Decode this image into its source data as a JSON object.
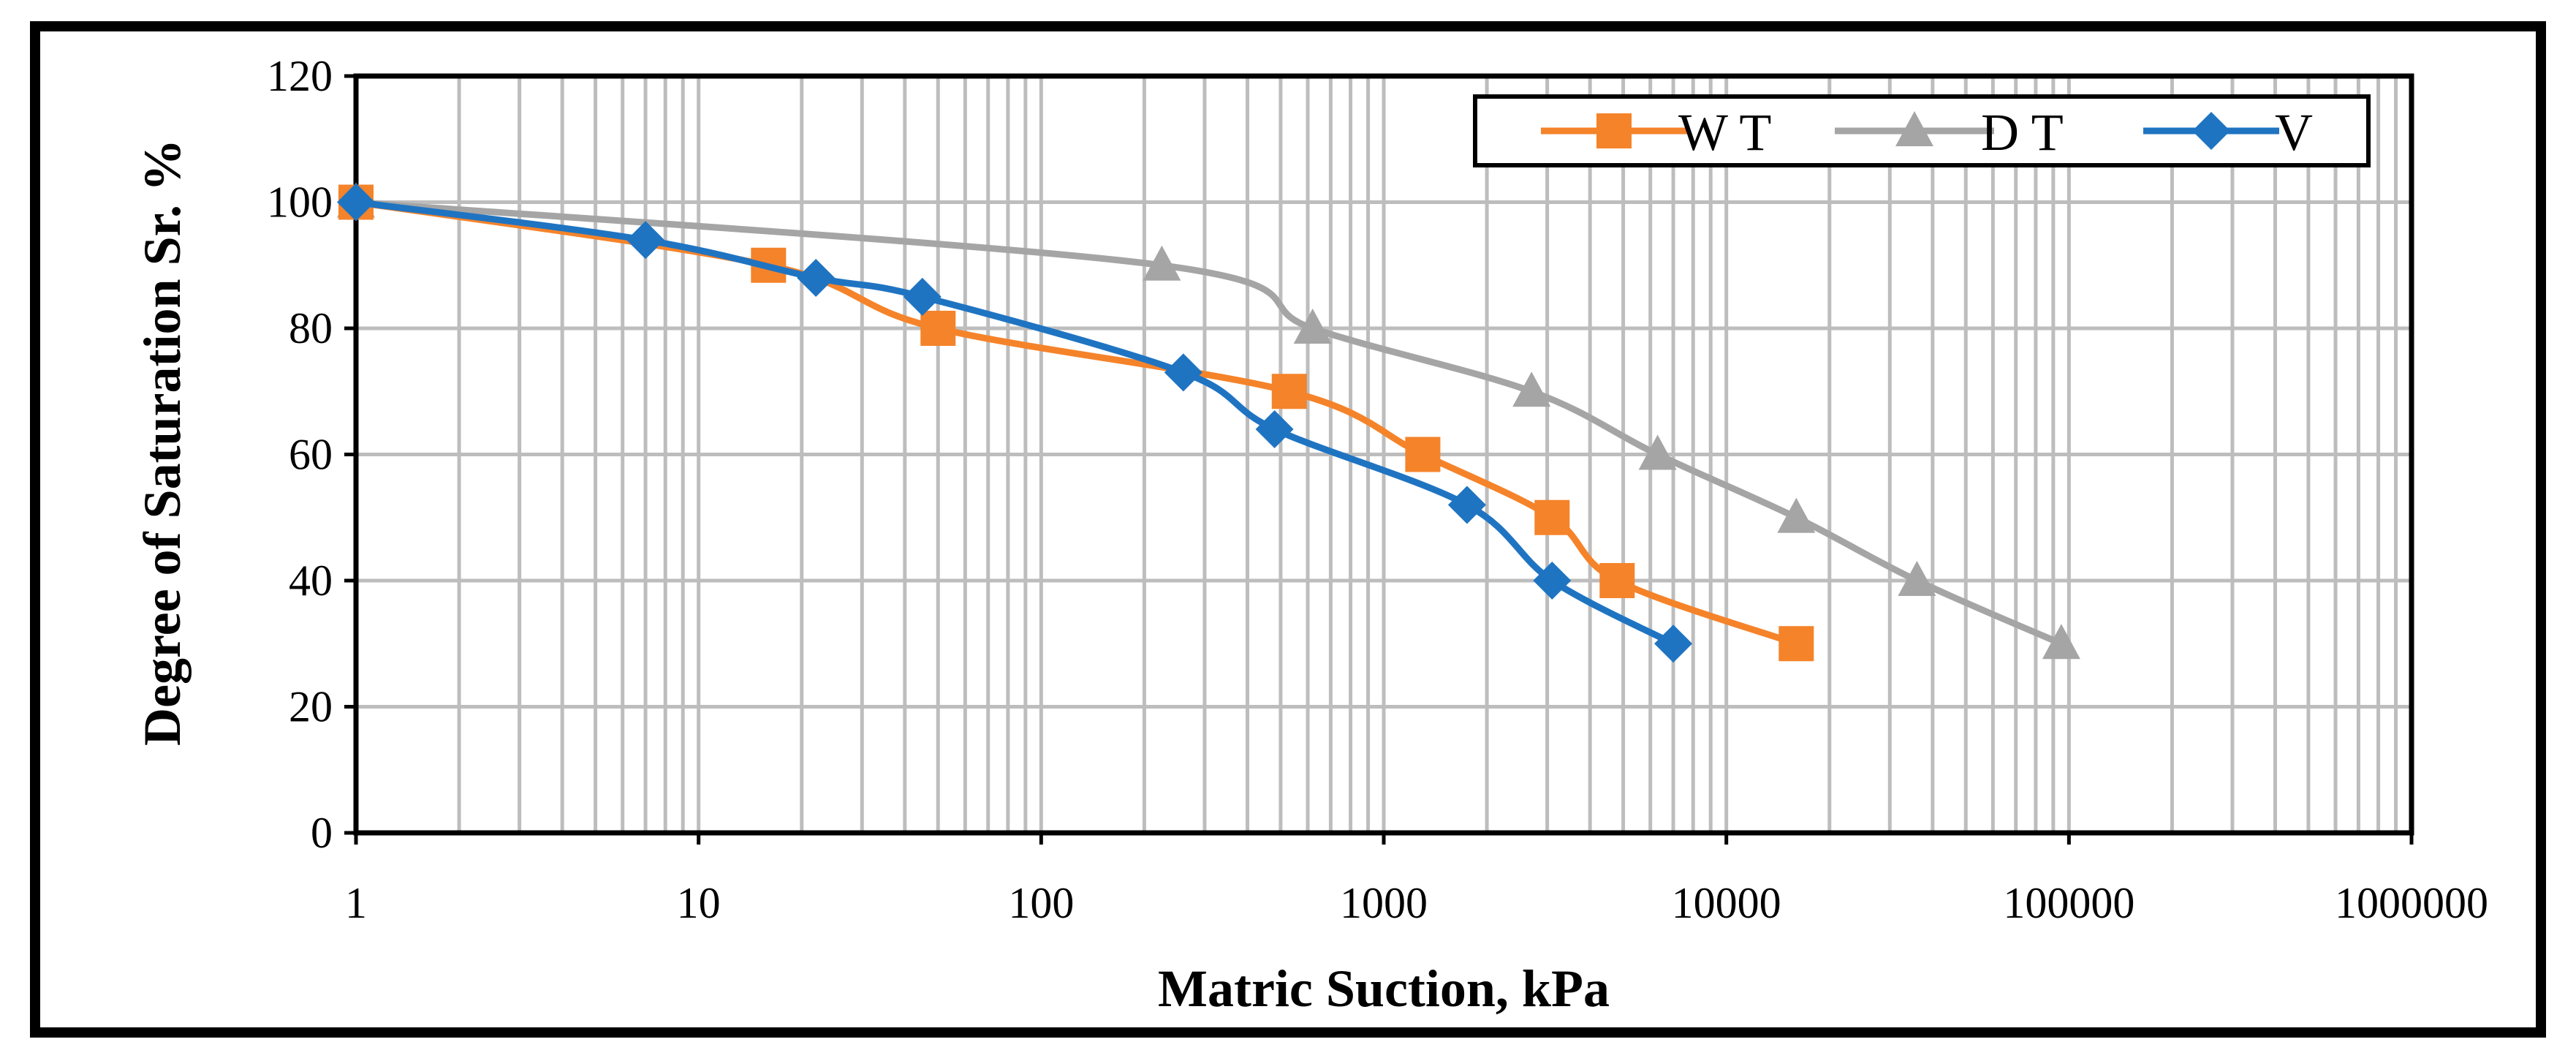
{
  "chart_data": {
    "type": "line",
    "title": "",
    "xlabel": "Matric Suction, kPa",
    "ylabel": "Degree of Saturation Sr.  %",
    "xscale": "log",
    "xlim": [
      1,
      1000000
    ],
    "ylim": [
      0,
      120
    ],
    "x_ticks": [
      1,
      10,
      100,
      1000,
      10000,
      100000,
      1000000
    ],
    "x_tick_labels": [
      "1",
      "10",
      "100",
      "1000",
      "10000",
      "100000",
      "1000000"
    ],
    "y_ticks": [
      0,
      20,
      40,
      60,
      80,
      100,
      120
    ],
    "y_tick_labels": [
      "0",
      "20",
      "40",
      "60",
      "80",
      "100",
      "120"
    ],
    "grid": true,
    "legend_position": "top-right",
    "series": [
      {
        "name": "W T",
        "color": "#F5832A",
        "marker": "square",
        "x": [
          1,
          16,
          50,
          530,
          1300,
          3100,
          4800,
          16000
        ],
        "y": [
          100,
          90,
          80,
          70,
          60,
          50,
          40,
          30
        ]
      },
      {
        "name": "D T",
        "color": "#A5A5A5",
        "marker": "triangle",
        "x": [
          1,
          225,
          620,
          2700,
          6300,
          16000,
          36000,
          95000
        ],
        "y": [
          100,
          90,
          80,
          70,
          60,
          50,
          40,
          30
        ]
      },
      {
        "name": "V",
        "color": "#1F74C2",
        "marker": "diamond",
        "x": [
          1,
          7,
          22,
          45,
          260,
          480,
          1750,
          3100,
          7000
        ],
        "y": [
          100,
          94,
          88,
          85,
          73,
          64,
          52,
          40,
          30
        ]
      }
    ]
  }
}
